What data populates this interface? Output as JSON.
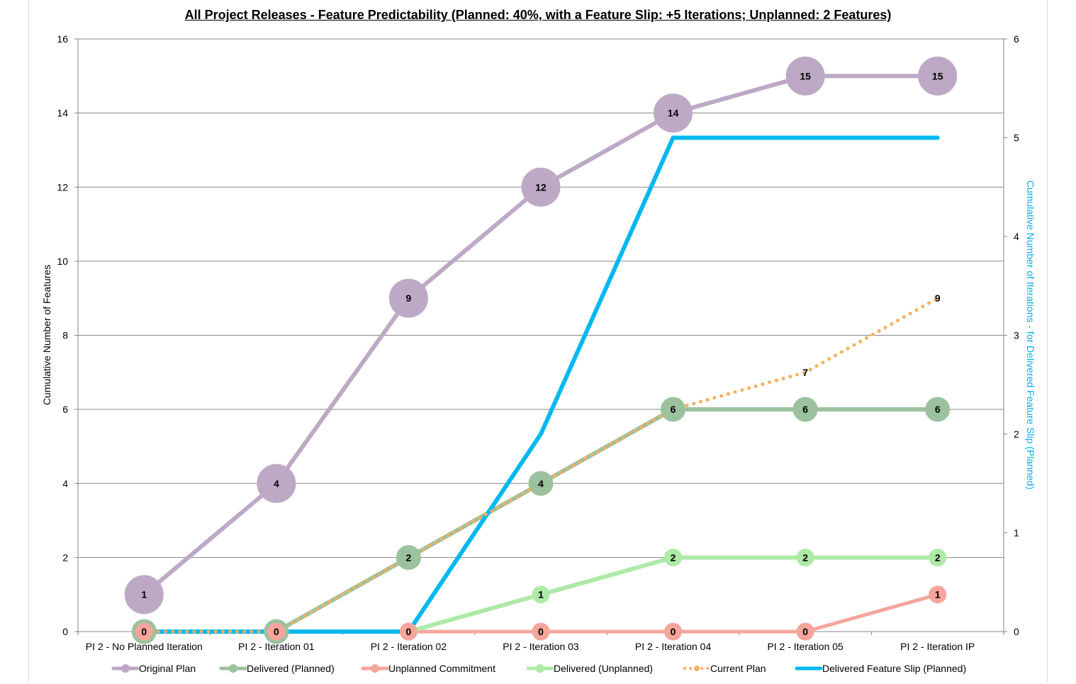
{
  "chart_data": {
    "type": "line",
    "title": "All Project Releases - Feature Predictability  (Planned:  40%, with a Feature Slip: +5 Iterations; Unplanned:  2 Features)",
    "ylabel": "Cumulative Number of Features",
    "y2label": "Cumulative Number of Iterations - for Delivered Feature Slip (Planned)",
    "categories": [
      "PI 2 - No Planned Iteration",
      "PI 2 - Iteration 01",
      "PI 2 - Iteration 02",
      "PI 2 - Iteration 03",
      "PI 2 - Iteration 04",
      "PI 2 - Iteration 05",
      "PI 2 - Iteration IP"
    ],
    "ylim": [
      0,
      16
    ],
    "yticks": [
      "0",
      "2",
      "4",
      "6",
      "8",
      "10",
      "12",
      "14",
      "16"
    ],
    "y2lim": [
      0,
      6
    ],
    "y2ticks": [
      "0",
      "1",
      "2",
      "3",
      "4",
      "5",
      "6"
    ],
    "grid": true,
    "legend_position": "bottom",
    "series": [
      {
        "name": "Original Plan",
        "axis": "left",
        "color": "#bda9c5",
        "marker": "circle",
        "marker_size": "large",
        "values": [
          1,
          4,
          9,
          12,
          14,
          15,
          15
        ],
        "labels": [
          "1",
          "4",
          "9",
          "12",
          "14",
          "15",
          "15"
        ]
      },
      {
        "name": "Delivered (Planned)",
        "axis": "left",
        "color": "#9cc19f",
        "marker": "circle",
        "marker_size": "medium",
        "values": [
          0,
          0,
          2,
          4,
          6,
          6,
          6
        ],
        "labels": [
          "0",
          "0",
          "2",
          "4",
          "6",
          "6",
          "6"
        ]
      },
      {
        "name": "Unplanned Commitment",
        "axis": "left",
        "color": "#f5a59c",
        "marker": "circle",
        "marker_size": "small",
        "values": [
          0,
          0,
          0,
          0,
          0,
          0,
          1
        ],
        "labels": [
          "0",
          "0",
          "0",
          "0",
          "0",
          "0",
          "1"
        ]
      },
      {
        "name": "Delivered (Unplanned)",
        "axis": "left",
        "color": "#aeeaa7",
        "marker": "circle",
        "marker_size": "small",
        "values": [
          0,
          0,
          0,
          1,
          2,
          2,
          2
        ],
        "labels": [
          "0",
          "0",
          "0",
          "1",
          "2",
          "2",
          "2"
        ]
      },
      {
        "name": "Current Plan",
        "axis": "left",
        "color": "#f7b05f",
        "marker": "none",
        "line": "dotted",
        "values": [
          0,
          0,
          2,
          4,
          6,
          7,
          9
        ],
        "labels": [
          "0",
          "0",
          "2",
          "4",
          "6",
          "7",
          "9"
        ]
      },
      {
        "name": "Delivered Feature Slip (Planned)",
        "axis": "right",
        "color": "#00b8f0",
        "marker": "none",
        "line": "solid",
        "values": [
          0,
          0,
          0,
          2,
          5,
          5,
          5
        ]
      }
    ]
  }
}
